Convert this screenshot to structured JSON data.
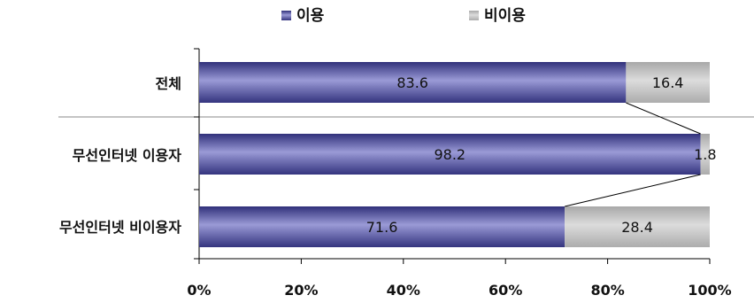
{
  "chart_data": {
    "type": "bar",
    "orientation": "horizontal",
    "stacked": true,
    "categories": [
      "전체",
      "무선인터넷 이용자",
      "무선인터넷 비이용자"
    ],
    "series": [
      {
        "name": "이용",
        "values": [
          83.6,
          98.2,
          71.6
        ],
        "color": "#4a4aa0"
      },
      {
        "name": "비이용",
        "values": [
          16.4,
          1.8,
          28.4
        ],
        "color": "#c4c4c4"
      }
    ],
    "data_labels": [
      [
        "83.6",
        "98.2",
        "71.6"
      ],
      [
        "16.4",
        "1.8",
        "28.4"
      ]
    ],
    "xlim": [
      0,
      100
    ],
    "xticks": [
      "0%",
      "20%",
      "40%",
      "60%",
      "80%",
      "100%"
    ],
    "legend": "top",
    "grid": false
  }
}
